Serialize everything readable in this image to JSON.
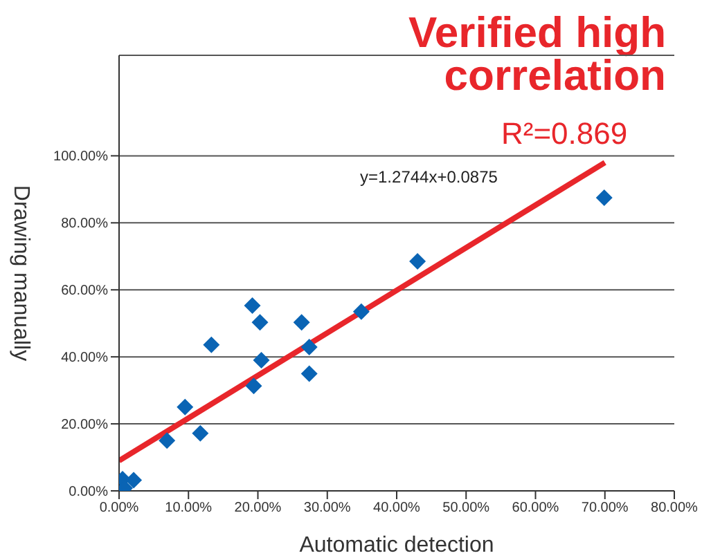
{
  "chart_data": {
    "type": "scatter",
    "title": "Verified high correlation",
    "annotations": [
      "R²=0.869",
      "y=1.2744x+0.0875"
    ],
    "xlabel": "Automatic detection",
    "ylabel": "Drawing manually",
    "xlim": [
      0,
      0.8
    ],
    "xticks": [
      {
        "value": 0,
        "label": "0.00%"
      },
      {
        "value": 0.1,
        "label": "10.00%"
      },
      {
        "value": 0.2,
        "label": "20.00%"
      },
      {
        "value": 0.3,
        "label": "30.00%"
      },
      {
        "value": 0.4,
        "label": "40.00%"
      },
      {
        "value": 0.5,
        "label": "50.00%"
      },
      {
        "value": 0.6,
        "label": "60.00%"
      },
      {
        "value": 0.7,
        "label": "70.00%"
      },
      {
        "value": 0.8,
        "label": "80.00%"
      }
    ],
    "ylim": [
      0,
      1.3
    ],
    "yticks": [
      {
        "value": 0,
        "label": "0.00%"
      },
      {
        "value": 0.2,
        "label": "20.00%"
      },
      {
        "value": 0.4,
        "label": "40.00%"
      },
      {
        "value": 0.6,
        "label": "60.00%"
      },
      {
        "value": 0.8,
        "label": "80.00%"
      },
      {
        "value": 1,
        "label": "100.00%"
      }
    ],
    "grid": "y",
    "series": [
      {
        "color": "#0a64b4",
        "marker": "diamond",
        "x": [
          0.005,
          0.008,
          0.021,
          0.069,
          0.095,
          0.117,
          0.133,
          0.192,
          0.203,
          0.194,
          0.205,
          0.263,
          0.274,
          0.274,
          0.349,
          0.43,
          0.699
        ],
        "values": [
          0.035,
          0.008,
          0.032,
          0.15,
          0.25,
          0.172,
          0.436,
          0.553,
          0.503,
          0.313,
          0.39,
          0.503,
          0.429,
          0.35,
          0.535,
          0.685,
          0.875
        ]
      },
      {
        "type": "line",
        "color": "#e8262b",
        "marker": "none",
        "line_style": "solid",
        "x": [
          0,
          0.7
        ],
        "values": [
          0.09,
          0.98
        ]
      }
    ]
  }
}
